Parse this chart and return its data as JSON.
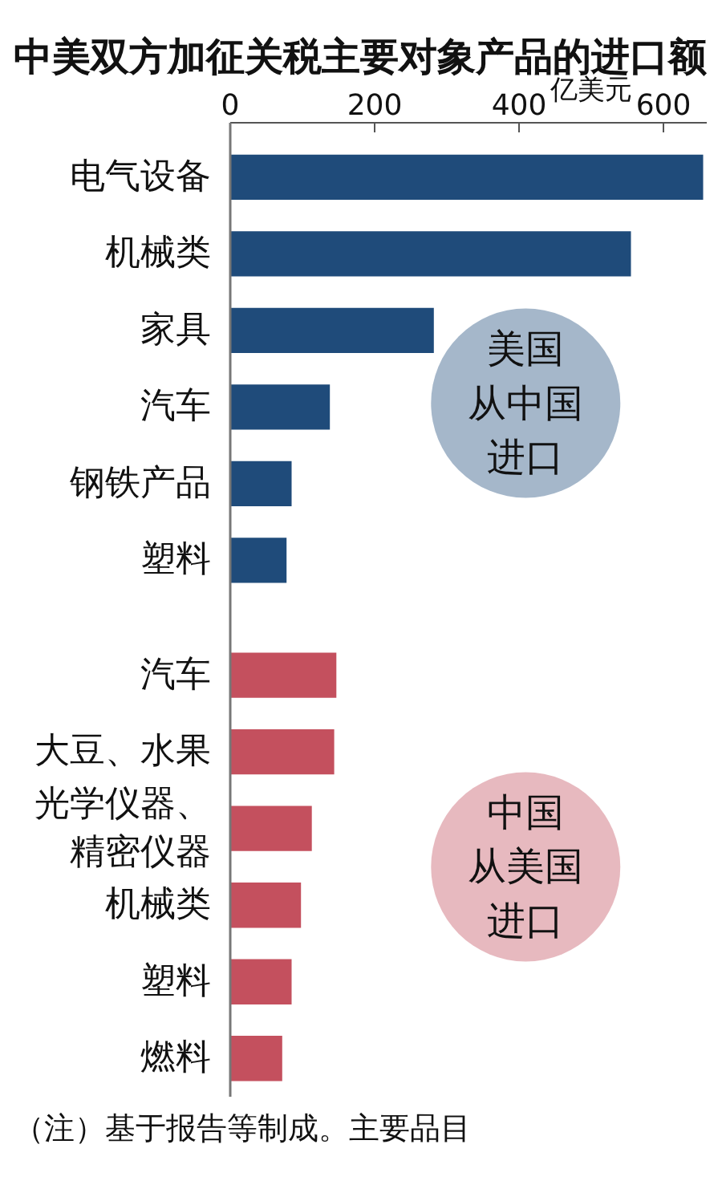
{
  "chart_data": {
    "type": "bar",
    "orientation": "horizontal",
    "title": "中美双方加征关税主要对象产品的进口额",
    "xlabel": "亿美元",
    "categories": [
      "电气设备",
      "机械类",
      "家具",
      "汽车",
      "钢铁产品",
      "塑料",
      "汽车",
      "大豆、水果",
      "光学仪器、精密仪器",
      "机械类",
      "塑料",
      "燃料"
    ],
    "series": [
      {
        "name": "美国从中国进口",
        "color": "#1f4b7a",
        "values": [
          655,
          555,
          282,
          138,
          85,
          78,
          null,
          null,
          null,
          null,
          null,
          null
        ]
      },
      {
        "name": "中国从美国进口",
        "color": "#c4505e",
        "values": [
          null,
          null,
          null,
          null,
          null,
          null,
          147,
          144,
          113,
          98,
          85,
          72
        ]
      }
    ],
    "xlim": [
      0,
      660
    ],
    "xticks": [
      0,
      200,
      400,
      600
    ],
    "legend": "right",
    "annotations": [
      "（注）基于报告等制成。主要品目"
    ]
  }
}
